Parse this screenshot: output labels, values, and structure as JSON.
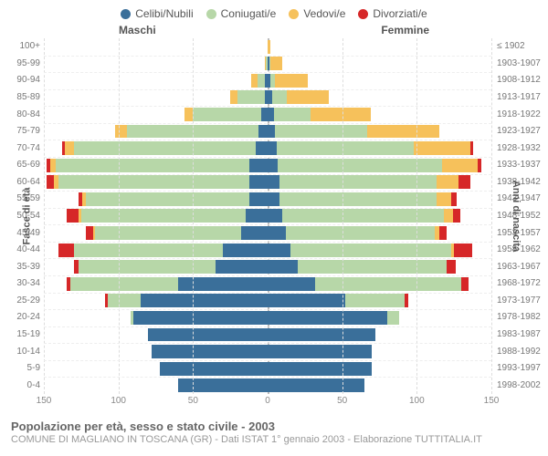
{
  "legend": [
    {
      "label": "Celibi/Nubili",
      "color": "#3a6f9a"
    },
    {
      "label": "Coniugati/e",
      "color": "#b7d7a8"
    },
    {
      "label": "Vedovi/e",
      "color": "#f6c15b"
    },
    {
      "label": "Divorziati/e",
      "color": "#d62728"
    }
  ],
  "gender": {
    "male": "Maschi",
    "female": "Femmine"
  },
  "axis": {
    "left_title": "Fasce di età",
    "right_title": "Anni di nascita"
  },
  "xmax": 150,
  "x_ticks": [
    150,
    100,
    50,
    0,
    50,
    100,
    150
  ],
  "title": "Popolazione per età, sesso e stato civile - 2003",
  "subtitle": "COMUNE DI MAGLIANO IN TOSCANA (GR) - Dati ISTAT 1° gennaio 2003 - Elaborazione TUTTITALIA.IT",
  "age_labels": [
    "0-4",
    "5-9",
    "10-14",
    "15-19",
    "20-24",
    "25-29",
    "30-34",
    "35-39",
    "40-44",
    "45-49",
    "50-54",
    "55-59",
    "60-64",
    "65-69",
    "70-74",
    "75-79",
    "80-84",
    "85-89",
    "90-94",
    "95-99",
    "100+"
  ],
  "year_labels": [
    "1998-2002",
    "1993-1997",
    "1988-1992",
    "1983-1987",
    "1978-1982",
    "1973-1977",
    "1968-1972",
    "1963-1967",
    "1958-1962",
    "1953-1957",
    "1948-1952",
    "1943-1947",
    "1938-1942",
    "1933-1937",
    "1928-1932",
    "1923-1927",
    "1918-1922",
    "1913-1917",
    "1908-1912",
    "1903-1907",
    "≤ 1902"
  ],
  "rows": [
    {
      "m": {
        "single": 60,
        "married": 0,
        "widowed": 0,
        "divorced": 0
      },
      "f": {
        "single": 65,
        "married": 0,
        "widowed": 0,
        "divorced": 0
      }
    },
    {
      "m": {
        "single": 72,
        "married": 0,
        "widowed": 0,
        "divorced": 0
      },
      "f": {
        "single": 70,
        "married": 0,
        "widowed": 0,
        "divorced": 0
      }
    },
    {
      "m": {
        "single": 78,
        "married": 0,
        "widowed": 0,
        "divorced": 0
      },
      "f": {
        "single": 70,
        "married": 0,
        "widowed": 0,
        "divorced": 0
      }
    },
    {
      "m": {
        "single": 80,
        "married": 0,
        "widowed": 0,
        "divorced": 0
      },
      "f": {
        "single": 72,
        "married": 0,
        "widowed": 0,
        "divorced": 0
      }
    },
    {
      "m": {
        "single": 90,
        "married": 2,
        "widowed": 0,
        "divorced": 0
      },
      "f": {
        "single": 80,
        "married": 8,
        "widowed": 0,
        "divorced": 0
      }
    },
    {
      "m": {
        "single": 85,
        "married": 22,
        "widowed": 0,
        "divorced": 2
      },
      "f": {
        "single": 52,
        "married": 40,
        "widowed": 0,
        "divorced": 2
      }
    },
    {
      "m": {
        "single": 60,
        "married": 72,
        "widowed": 0,
        "divorced": 3
      },
      "f": {
        "single": 32,
        "married": 98,
        "widowed": 0,
        "divorced": 5
      }
    },
    {
      "m": {
        "single": 35,
        "married": 92,
        "widowed": 0,
        "divorced": 3
      },
      "f": {
        "single": 20,
        "married": 100,
        "widowed": 0,
        "divorced": 6
      }
    },
    {
      "m": {
        "single": 30,
        "married": 100,
        "widowed": 0,
        "divorced": 10
      },
      "f": {
        "single": 15,
        "married": 108,
        "widowed": 2,
        "divorced": 12
      }
    },
    {
      "m": {
        "single": 18,
        "married": 98,
        "widowed": 1,
        "divorced": 5
      },
      "f": {
        "single": 12,
        "married": 100,
        "widowed": 3,
        "divorced": 5
      }
    },
    {
      "m": {
        "single": 15,
        "married": 110,
        "widowed": 2,
        "divorced": 8
      },
      "f": {
        "single": 10,
        "married": 108,
        "widowed": 6,
        "divorced": 5
      }
    },
    {
      "m": {
        "single": 12,
        "married": 110,
        "widowed": 2,
        "divorced": 3
      },
      "f": {
        "single": 8,
        "married": 105,
        "widowed": 10,
        "divorced": 4
      }
    },
    {
      "m": {
        "single": 12,
        "married": 128,
        "widowed": 3,
        "divorced": 5
      },
      "f": {
        "single": 8,
        "married": 105,
        "widowed": 15,
        "divorced": 8
      }
    },
    {
      "m": {
        "single": 12,
        "married": 130,
        "widowed": 4,
        "divorced": 2
      },
      "f": {
        "single": 7,
        "married": 110,
        "widowed": 24,
        "divorced": 2
      }
    },
    {
      "m": {
        "single": 8,
        "married": 122,
        "widowed": 6,
        "divorced": 2
      },
      "f": {
        "single": 6,
        "married": 92,
        "widowed": 38,
        "divorced": 2
      }
    },
    {
      "m": {
        "single": 6,
        "married": 88,
        "widowed": 8,
        "divorced": 0
      },
      "f": {
        "single": 5,
        "married": 62,
        "widowed": 48,
        "divorced": 0
      }
    },
    {
      "m": {
        "single": 4,
        "married": 46,
        "widowed": 6,
        "divorced": 0
      },
      "f": {
        "single": 4,
        "married": 25,
        "widowed": 40,
        "divorced": 0
      }
    },
    {
      "m": {
        "single": 2,
        "married": 18,
        "widowed": 5,
        "divorced": 0
      },
      "f": {
        "single": 3,
        "married": 10,
        "widowed": 28,
        "divorced": 0
      }
    },
    {
      "m": {
        "single": 2,
        "married": 5,
        "widowed": 4,
        "divorced": 0
      },
      "f": {
        "single": 2,
        "married": 3,
        "widowed": 22,
        "divorced": 0
      }
    },
    {
      "m": {
        "single": 0,
        "married": 1,
        "widowed": 1,
        "divorced": 0
      },
      "f": {
        "single": 1,
        "married": 1,
        "widowed": 8,
        "divorced": 0
      }
    },
    {
      "m": {
        "single": 0,
        "married": 0,
        "widowed": 0,
        "divorced": 0
      },
      "f": {
        "single": 0,
        "married": 0,
        "widowed": 2,
        "divorced": 0
      }
    }
  ]
}
